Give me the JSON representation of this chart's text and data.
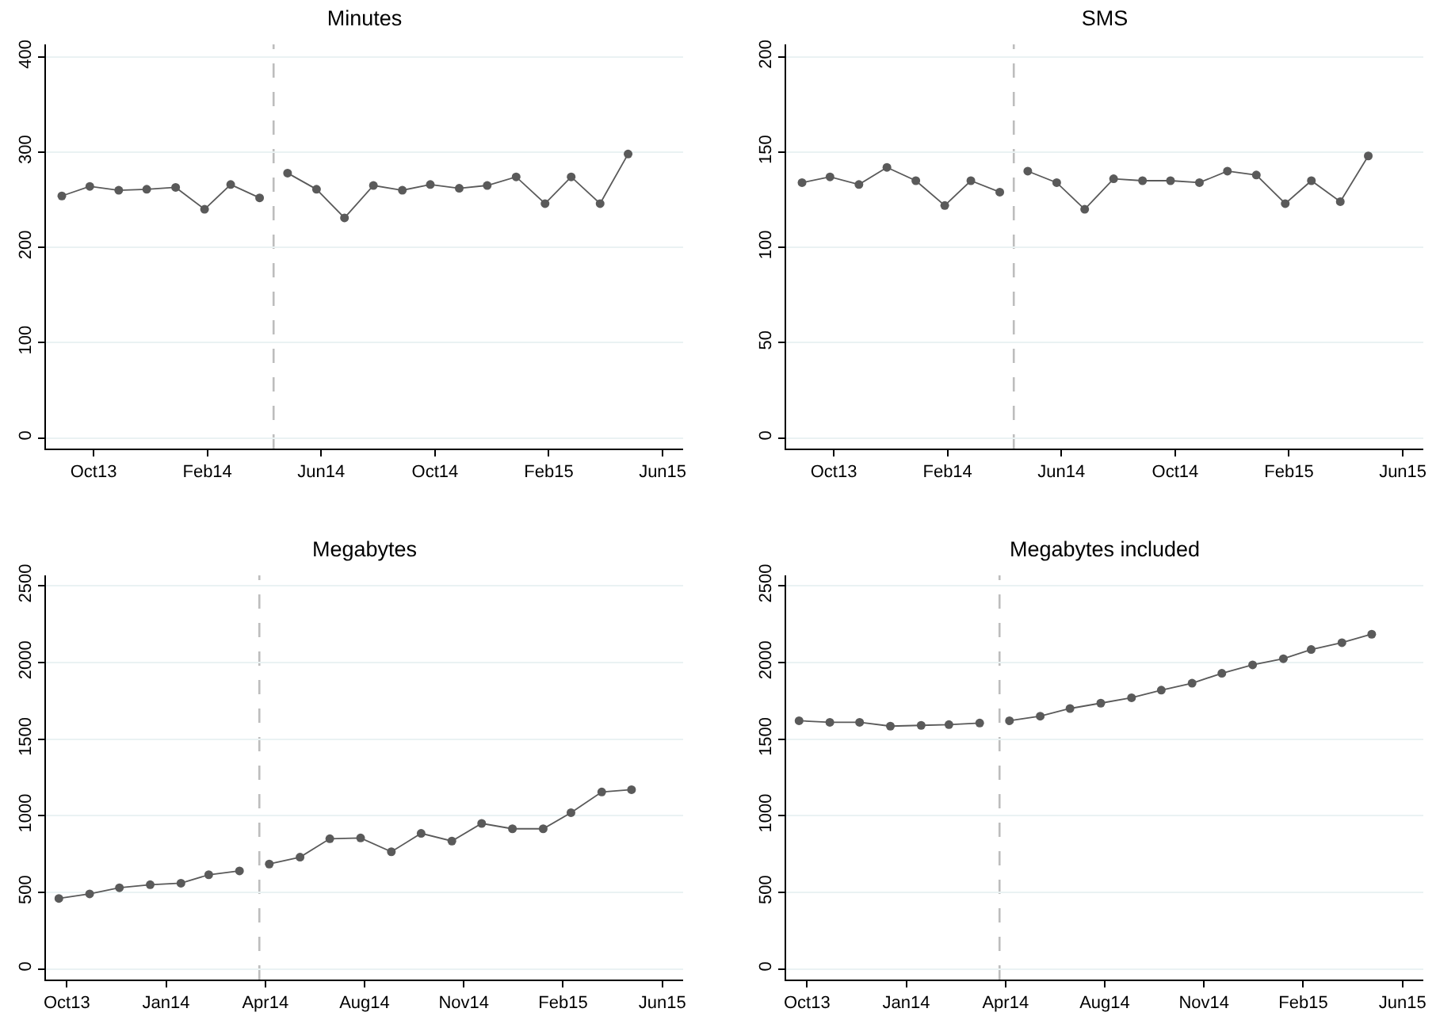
{
  "chart_data": [
    {
      "type": "line",
      "title": "Minutes",
      "grid": "y",
      "marker": "circle",
      "line_style": "solid",
      "x": [
        "2013-09-01",
        "2013-10-01",
        "2013-11-01",
        "2013-12-01",
        "2014-01-01",
        "2014-02-01",
        "2014-03-01",
        "2014-04-01",
        "2014-04-16",
        "2014-05-01",
        "2014-06-01",
        "2014-07-01",
        "2014-08-01",
        "2014-09-01",
        "2014-10-01",
        "2014-11-01",
        "2014-12-01",
        "2015-01-01",
        "2015-02-01",
        "2015-03-01",
        "2015-04-01",
        "2015-05-01"
      ],
      "series": [
        {
          "color": "#5a5a5a",
          "values": [
            254,
            264,
            260,
            261,
            263,
            240,
            266,
            252,
            null,
            278,
            261,
            231,
            265,
            260,
            266,
            262,
            265,
            274,
            246,
            274,
            246,
            298
          ]
        }
      ],
      "xlim": [
        "2013-08-15",
        "2015-06-29"
      ],
      "xticks": [
        {
          "value": "2013-10-05",
          "label": "Oct13"
        },
        {
          "value": "2014-02-04",
          "label": "Feb14"
        },
        {
          "value": "2014-06-06",
          "label": "Jun14"
        },
        {
          "value": "2014-10-06",
          "label": "Oct14"
        },
        {
          "value": "2015-02-05",
          "label": "Feb15"
        },
        {
          "value": "2015-06-07",
          "label": "Jun15"
        }
      ],
      "ylim": [
        -11,
        413
      ],
      "yticks": [
        0,
        100,
        200,
        300,
        400
      ],
      "ref_lines": [
        {
          "axis": "x",
          "value": "2014-04-16",
          "color": "#bdbdbd",
          "line_style": "dashed"
        }
      ]
    },
    {
      "type": "line",
      "title": "SMS",
      "grid": "y",
      "marker": "circle",
      "line_style": "solid",
      "x": [
        "2013-09-01",
        "2013-10-01",
        "2013-11-01",
        "2013-12-01",
        "2014-01-01",
        "2014-02-01",
        "2014-03-01",
        "2014-04-01",
        "2014-04-16",
        "2014-05-01",
        "2014-06-01",
        "2014-07-01",
        "2014-08-01",
        "2014-09-01",
        "2014-10-01",
        "2014-11-01",
        "2014-12-01",
        "2015-01-01",
        "2015-02-01",
        "2015-03-01",
        "2015-04-01",
        "2015-05-01"
      ],
      "series": [
        {
          "color": "#5a5a5a",
          "values": [
            134,
            137,
            133,
            142,
            135,
            122,
            135,
            129,
            null,
            140,
            134,
            120,
            136,
            135,
            135,
            134,
            140,
            138,
            123,
            135,
            124,
            148
          ]
        }
      ],
      "xlim": [
        "2013-08-15",
        "2015-06-29"
      ],
      "xticks": [
        {
          "value": "2013-10-05",
          "label": "Oct13"
        },
        {
          "value": "2014-02-04",
          "label": "Feb14"
        },
        {
          "value": "2014-06-06",
          "label": "Jun14"
        },
        {
          "value": "2014-10-06",
          "label": "Oct14"
        },
        {
          "value": "2015-02-05",
          "label": "Feb15"
        },
        {
          "value": "2015-06-07",
          "label": "Jun15"
        }
      ],
      "ylim": [
        -5.5,
        206.5
      ],
      "yticks": [
        0,
        50,
        100,
        150,
        200
      ],
      "ref_lines": [
        {
          "axis": "x",
          "value": "2014-04-16",
          "color": "#bdbdbd",
          "line_style": "dashed"
        }
      ]
    },
    {
      "type": "line",
      "title": "Megabytes",
      "grid": "y",
      "marker": "circle",
      "line_style": "solid",
      "x": [
        "2013-10-01",
        "2013-11-01",
        "2013-12-01",
        "2014-01-01",
        "2014-02-01",
        "2014-03-01",
        "2014-04-01",
        "2014-04-21",
        "2014-05-01",
        "2014-06-01",
        "2014-07-01",
        "2014-08-01",
        "2014-09-01",
        "2014-10-01",
        "2014-11-01",
        "2014-12-01",
        "2015-01-01",
        "2015-02-01",
        "2015-03-01",
        "2015-04-01",
        "2015-05-01"
      ],
      "series": [
        {
          "color": "#5a5a5a",
          "values": [
            460,
            490,
            530,
            550,
            560,
            615,
            640,
            null,
            685,
            730,
            850,
            855,
            765,
            885,
            835,
            950,
            915,
            915,
            1020,
            1155,
            1170
          ]
        }
      ],
      "xlim": [
        "2013-09-18",
        "2015-06-22"
      ],
      "xticks": [
        {
          "value": "2013-10-09",
          "label": "Oct13"
        },
        {
          "value": "2014-01-17",
          "label": "Jan14"
        },
        {
          "value": "2014-04-27",
          "label": "Apr14"
        },
        {
          "value": "2014-08-05",
          "label": "Aug14"
        },
        {
          "value": "2014-11-13",
          "label": "Nov14"
        },
        {
          "value": "2015-02-21",
          "label": "Feb15"
        },
        {
          "value": "2015-06-01",
          "label": "Jun15"
        }
      ],
      "ylim": [
        -69,
        2569
      ],
      "yticks": [
        0,
        500,
        1000,
        1500,
        2000,
        2500
      ],
      "ref_lines": [
        {
          "axis": "x",
          "value": "2014-04-21",
          "color": "#bdbdbd",
          "line_style": "dashed"
        }
      ]
    },
    {
      "type": "line",
      "title": "Megabytes included",
      "grid": "y",
      "marker": "circle",
      "line_style": "solid",
      "x": [
        "2013-10-01",
        "2013-11-01",
        "2013-12-01",
        "2014-01-01",
        "2014-02-01",
        "2014-03-01",
        "2014-04-01",
        "2014-04-21",
        "2014-05-01",
        "2014-06-01",
        "2014-07-01",
        "2014-08-01",
        "2014-09-01",
        "2014-10-01",
        "2014-11-01",
        "2014-12-01",
        "2015-01-01",
        "2015-02-01",
        "2015-03-01",
        "2015-04-01",
        "2015-05-01"
      ],
      "series": [
        {
          "color": "#5a5a5a",
          "values": [
            1620,
            1610,
            1610,
            1585,
            1590,
            1595,
            1605,
            null,
            1620,
            1650,
            1700,
            1735,
            1770,
            1820,
            1865,
            1930,
            1985,
            2025,
            2085,
            2130,
            2185
          ]
        }
      ],
      "xlim": [
        "2013-09-18",
        "2015-06-22"
      ],
      "xticks": [
        {
          "value": "2013-10-09",
          "label": "Oct13"
        },
        {
          "value": "2014-01-17",
          "label": "Jan14"
        },
        {
          "value": "2014-04-27",
          "label": "Apr14"
        },
        {
          "value": "2014-08-05",
          "label": "Aug14"
        },
        {
          "value": "2014-11-13",
          "label": "Nov14"
        },
        {
          "value": "2015-02-21",
          "label": "Feb15"
        },
        {
          "value": "2015-06-01",
          "label": "Jun15"
        }
      ],
      "ylim": [
        -69,
        2569
      ],
      "yticks": [
        0,
        500,
        1000,
        1500,
        2000,
        2500
      ],
      "ref_lines": [
        {
          "axis": "x",
          "value": "2014-04-21",
          "color": "#bdbdbd",
          "line_style": "dashed"
        }
      ]
    }
  ]
}
